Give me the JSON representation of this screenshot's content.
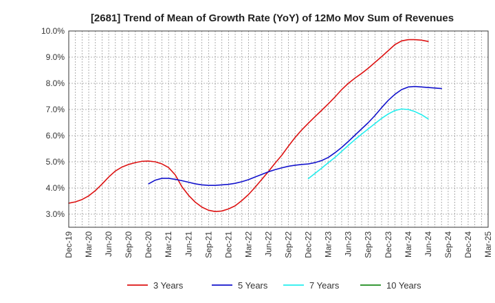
{
  "chart_data": {
    "type": "line",
    "title": "[2681]  Trend of Mean of Growth Rate (YoY) of 12Mo Mov Sum of Revenues",
    "xlabel": "",
    "ylabel": "",
    "ylim": [
      2.5,
      10.0
    ],
    "yticks": [
      3.0,
      4.0,
      5.0,
      6.0,
      7.0,
      8.0,
      9.0,
      10.0
    ],
    "ytick_labels": [
      "3.0%",
      "4.0%",
      "5.0%",
      "6.0%",
      "7.0%",
      "8.0%",
      "9.0%",
      "10.0%"
    ],
    "x_start": "Dec-19",
    "x_end": "Mar-25",
    "xtick_labels": [
      "Dec-19",
      "Mar-20",
      "Jun-20",
      "Sep-20",
      "Dec-20",
      "Mar-21",
      "Jun-21",
      "Sep-21",
      "Dec-21",
      "Mar-22",
      "Jun-22",
      "Sep-22",
      "Dec-22",
      "Mar-23",
      "Jun-23",
      "Sep-23",
      "Dec-23",
      "Mar-24",
      "Jun-24",
      "Sep-24",
      "Dec-24",
      "Mar-25"
    ],
    "grid": true,
    "legend_position": "bottom",
    "series": [
      {
        "name": "3 Years",
        "color": "#dd1111",
        "start": "Dec-19",
        "values": [
          3.42,
          3.47,
          3.56,
          3.7,
          3.9,
          4.15,
          4.42,
          4.65,
          4.8,
          4.9,
          4.97,
          5.02,
          5.03,
          5.0,
          4.92,
          4.78,
          4.5,
          4.05,
          3.72,
          3.46,
          3.27,
          3.15,
          3.1,
          3.12,
          3.2,
          3.32,
          3.52,
          3.75,
          4.03,
          4.33,
          4.63,
          4.95,
          5.25,
          5.6,
          5.93,
          6.22,
          6.48,
          6.73,
          6.97,
          7.22,
          7.48,
          7.76,
          8.0,
          8.2,
          8.38,
          8.58,
          8.8,
          9.02,
          9.25,
          9.48,
          9.62,
          9.67,
          9.67,
          9.65,
          9.6
        ]
      },
      {
        "name": "5 Years",
        "color": "#1111cc",
        "start": "Dec-20",
        "values": [
          4.16,
          4.3,
          4.37,
          4.37,
          4.33,
          4.28,
          4.22,
          4.16,
          4.12,
          4.1,
          4.1,
          4.12,
          4.14,
          4.18,
          4.24,
          4.32,
          4.42,
          4.52,
          4.62,
          4.7,
          4.77,
          4.83,
          4.87,
          4.9,
          4.92,
          4.97,
          5.05,
          5.17,
          5.35,
          5.55,
          5.78,
          6.02,
          6.26,
          6.5,
          6.77,
          7.07,
          7.35,
          7.58,
          7.76,
          7.86,
          7.88,
          7.86,
          7.84,
          7.82,
          7.8
        ]
      },
      {
        "name": "7 Years",
        "color": "#22eeee",
        "start": "Dec-22",
        "values": [
          4.36,
          4.56,
          4.76,
          4.97,
          5.17,
          5.4,
          5.63,
          5.85,
          6.06,
          6.26,
          6.46,
          6.66,
          6.83,
          6.96,
          7.02,
          7.0,
          6.92,
          6.8,
          6.64
        ]
      },
      {
        "name": "10 Years",
        "color": "#1a8a1a",
        "start": "",
        "values": []
      }
    ]
  }
}
